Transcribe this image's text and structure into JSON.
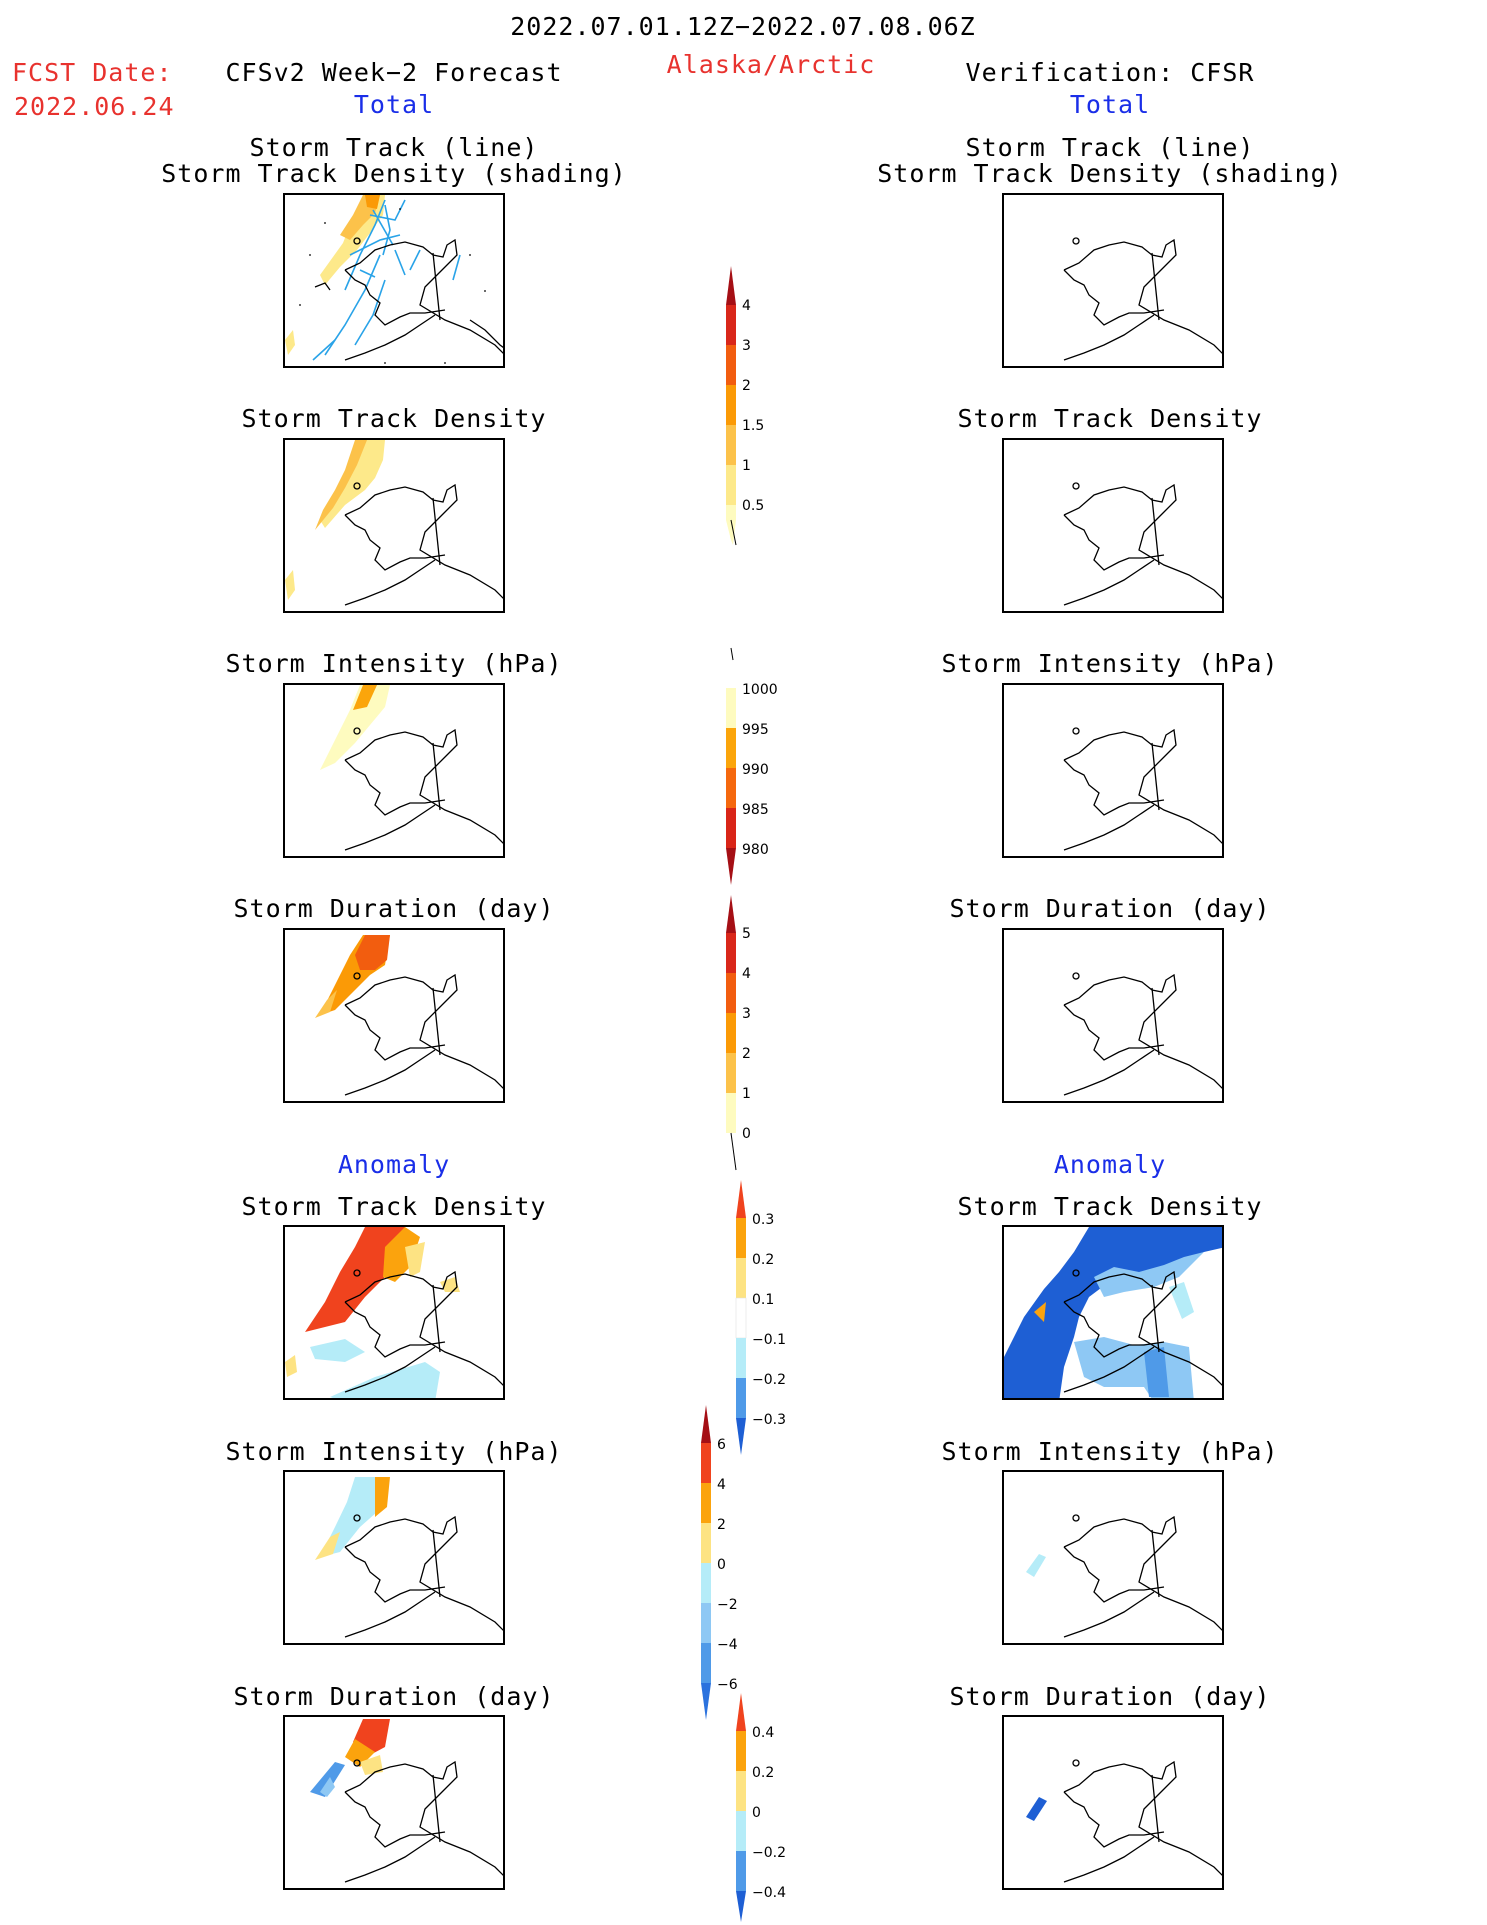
{
  "header": {
    "date_range": "2022.07.01.12Z−2022.07.08.06Z",
    "fcst_label": "FCST Date:",
    "fcst_date": "2022.06.24",
    "left_title": "CFSv2 Week−2 Forecast",
    "region": "Alaska/Arctic",
    "right_title": "Verification: CFSR",
    "total_label": "Total",
    "anomaly_label": "Anomaly"
  },
  "panels": {
    "track_line_1": "Storm Track (line)",
    "track_line_2": "Storm Track Density (shading)",
    "track_density": "Storm Track Density",
    "intensity": "Storm Intensity (hPa)",
    "duration": "Storm Duration (day)"
  },
  "colorbars": {
    "density": {
      "labels": [
        "4",
        "3",
        "2",
        "1.5",
        "1",
        "0.5"
      ],
      "colors": [
        "#a50f15",
        "#d9271a",
        "#f25d0f",
        "#fb9a06",
        "#fcc24a",
        "#fde98a",
        "#fefbbf"
      ]
    },
    "intensity": {
      "labels": [
        "1000",
        "995",
        "990",
        "985",
        "980"
      ],
      "colors": [
        "#fefbbf",
        "#fba50b",
        "#f5680e",
        "#d92518",
        "#a50f15"
      ]
    },
    "duration": {
      "labels": [
        "5",
        "4",
        "3",
        "2",
        "1",
        "0"
      ],
      "colors": [
        "#a50f15",
        "#d9271a",
        "#f25d0f",
        "#fb9a06",
        "#fcc24a",
        "#fefbbf"
      ]
    },
    "density_anom": {
      "labels": [
        "0.3",
        "0.2",
        "0.1",
        "−0.1",
        "−0.2",
        "−0.3"
      ],
      "colors": [
        "#f0431e",
        "#fba30d",
        "#fde383",
        "#ffffff",
        "#b5ecf8",
        "#8ec8f4",
        "#4f9ae8",
        "#1e5fd4"
      ]
    },
    "intensity_anom": {
      "labels": [
        "6",
        "4",
        "2",
        "0",
        "−2",
        "−4",
        "−6"
      ],
      "colors": [
        "#a50f15",
        "#f0431e",
        "#fba30d",
        "#fde383",
        "#b5ecf8",
        "#8ec8f4",
        "#4f9ae8",
        "#2b72de",
        "#1e5fd4"
      ]
    },
    "duration_anom": {
      "labels": [
        "0.4",
        "0.2",
        "0",
        "−0.2",
        "−0.4"
      ],
      "colors": [
        "#f0431e",
        "#fba30d",
        "#fde383",
        "#b5ecf8",
        "#4f9ae8",
        "#1e5fd4"
      ]
    }
  }
}
